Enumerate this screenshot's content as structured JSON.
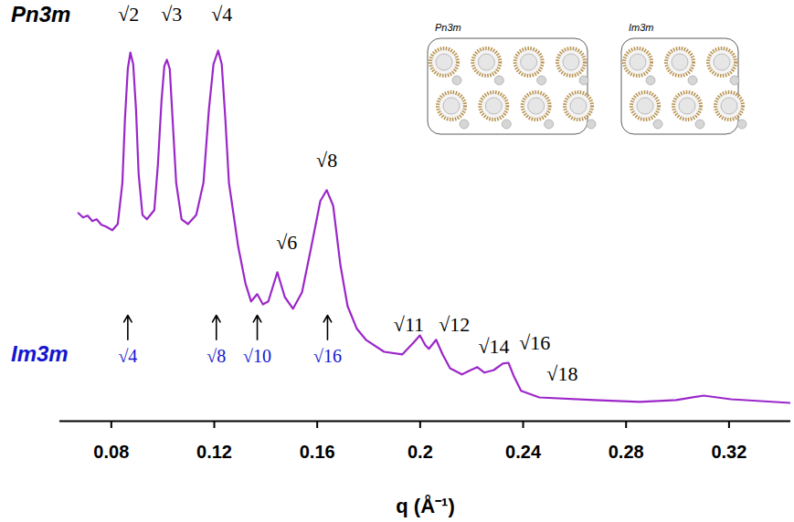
{
  "chart_data": {
    "type": "line",
    "xlabel": "q (Å⁻¹)",
    "xlim": [
      0.06,
      0.344
    ],
    "xticks": [
      0.08,
      0.12,
      0.16,
      0.2,
      0.24,
      0.28,
      0.32
    ],
    "ylim": [
      0,
      105
    ],
    "tick_labels": "x",
    "grid": false,
    "color": "#9b27c9",
    "phase_labels": [
      {
        "text": "Pn3m",
        "color": "#000000"
      },
      {
        "text": "Im3m",
        "color": "#1515d0"
      }
    ],
    "insets": [
      "Pn3m",
      "Im3m"
    ],
    "x": [
      0.0672,
      0.069,
      0.0708,
      0.0726,
      0.0743,
      0.0761,
      0.0779,
      0.0804,
      0.0825,
      0.0843,
      0.0853,
      0.0864,
      0.0874,
      0.0885,
      0.0896,
      0.0906,
      0.0921,
      0.0938,
      0.0967,
      0.0981,
      0.0995,
      0.1006,
      0.1016,
      0.1027,
      0.1038,
      0.1052,
      0.1073,
      0.1098,
      0.113,
      0.1158,
      0.1179,
      0.1197,
      0.1215,
      0.1229,
      0.1243,
      0.1257,
      0.1293,
      0.1321,
      0.1343,
      0.1367,
      0.1389,
      0.141,
      0.1445,
      0.1474,
      0.1506,
      0.1541,
      0.1577,
      0.1612,
      0.1637,
      0.1662,
      0.169,
      0.1718,
      0.1754,
      0.1789,
      0.186,
      0.1931,
      0.1974,
      0.1999,
      0.202,
      0.2034,
      0.2062,
      0.2087,
      0.2116,
      0.2162,
      0.2197,
      0.2222,
      0.225,
      0.2286,
      0.2321,
      0.2343,
      0.2364,
      0.2392,
      0.2463,
      0.2676,
      0.2853,
      0.2995,
      0.3101,
      0.3208,
      0.3438
    ],
    "values": [
      57.0,
      55.8,
      56.3,
      54.8,
      55.3,
      53.8,
      53.3,
      52.3,
      54.0,
      65.3,
      82.8,
      96.5,
      101.0,
      97.8,
      85.3,
      67.8,
      56.5,
      55.3,
      57.8,
      70.3,
      87.8,
      97.3,
      99.0,
      96.5,
      82.8,
      65.3,
      55.3,
      54.0,
      56.5,
      65.3,
      85.3,
      97.8,
      101.5,
      97.8,
      82.8,
      65.3,
      47.8,
      37.8,
      32.8,
      34.8,
      32.0,
      32.8,
      40.8,
      34.0,
      30.8,
      35.3,
      47.8,
      60.3,
      63.3,
      59.0,
      42.8,
      31.5,
      25.3,
      22.3,
      19.0,
      18.3,
      21.5,
      23.5,
      20.8,
      19.8,
      22.3,
      18.3,
      14.5,
      12.8,
      14.0,
      14.8,
      13.3,
      14.0,
      15.8,
      16.0,
      12.3,
      8.3,
      6.5,
      5.8,
      5.3,
      5.8,
      7.0,
      6.0,
      5.0
    ],
    "peak_labels": [
      {
        "label": "√2",
        "q": 0.0867,
        "intensity": 111.5
      },
      {
        "label": "√3",
        "q": 0.1034,
        "intensity": 111.5
      },
      {
        "label": "√4",
        "q": 0.1229,
        "intensity": 111.5
      },
      {
        "label": "√6",
        "q": 0.1481,
        "intensity": 49.0
      },
      {
        "label": "√8",
        "q": 0.1637,
        "intensity": 71.5
      },
      {
        "label": "√11",
        "q": 0.1956,
        "intensity": 26.5
      },
      {
        "label": "√12",
        "q": 0.2133,
        "intensity": 26.5
      },
      {
        "label": "√14",
        "q": 0.2286,
        "intensity": 20.3
      },
      {
        "label": "√16",
        "q": 0.2445,
        "intensity": 21.5
      },
      {
        "label": "√18",
        "q": 0.2552,
        "intensity": 12.8
      }
    ],
    "im3m_labels": [
      {
        "label": "√4",
        "q": 0.0864,
        "intensity": 17.8
      },
      {
        "label": "√8",
        "q": 0.1208,
        "intensity": 17.8
      },
      {
        "label": "√10",
        "q": 0.1367,
        "intensity": 17.8
      },
      {
        "label": "√16",
        "q": 0.164,
        "intensity": 17.8
      }
    ]
  }
}
